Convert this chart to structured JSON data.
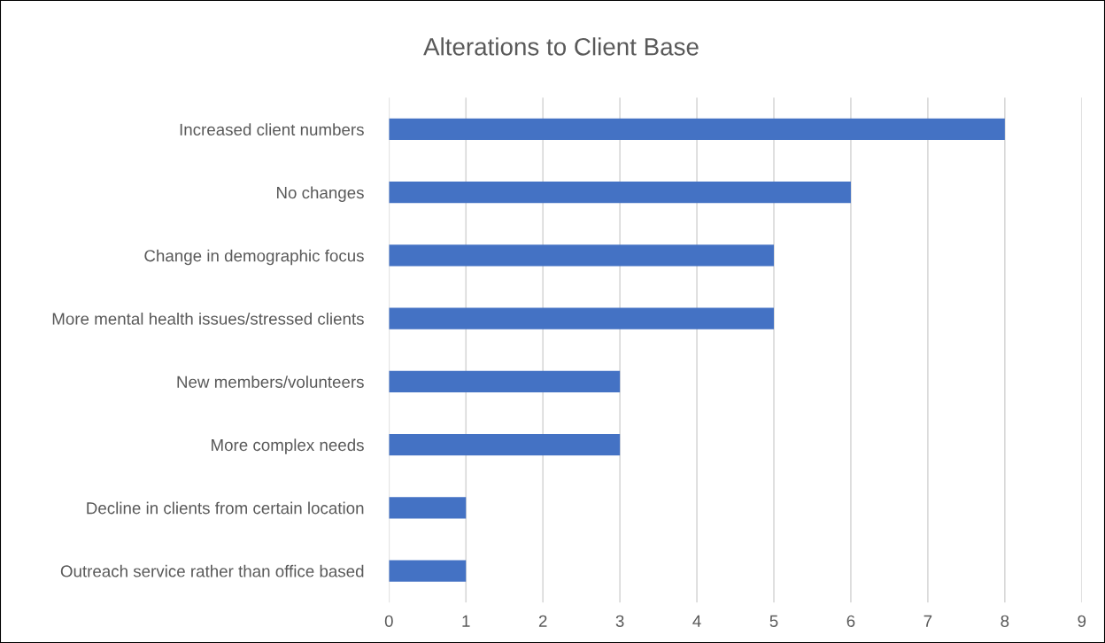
{
  "chart_data": {
    "type": "bar",
    "orientation": "horizontal",
    "title": "Alterations to Client Base",
    "categories": [
      "Increased client numbers",
      "No changes",
      "Change in demographic focus",
      "More mental health issues/stressed clients",
      "New members/volunteers",
      "More complex needs",
      "Decline in clients from certain location",
      "Outreach service rather than office based"
    ],
    "values": [
      8,
      6,
      5,
      5,
      3,
      3,
      1,
      1
    ],
    "color": "#4472c4",
    "xlim": [
      0,
      9
    ],
    "xticks": [
      0,
      1,
      2,
      3,
      4,
      5,
      6,
      7,
      8,
      9
    ],
    "grid": "x",
    "legend": false
  }
}
